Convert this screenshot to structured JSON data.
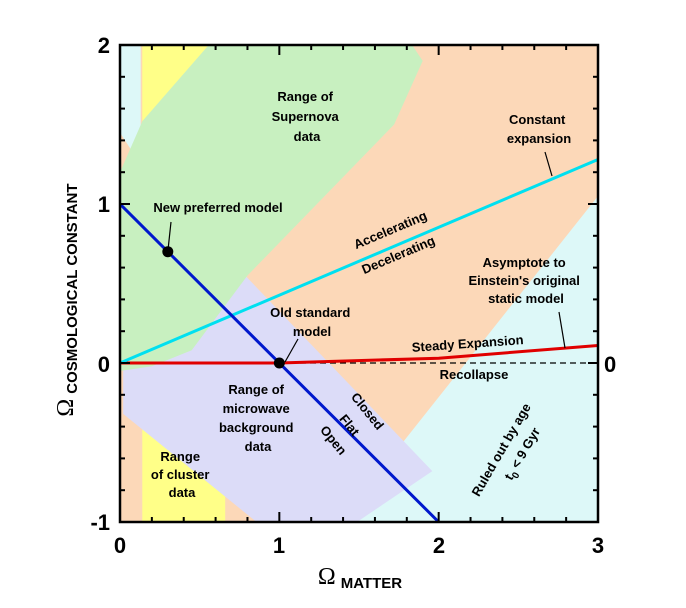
{
  "chart_data": {
    "type": "line",
    "xlabel": {
      "symbol": "Ω",
      "subscript": "MATTER"
    },
    "ylabel": {
      "symbol": "Ω",
      "subscript": "COSMOLOGICAL CONSTANT"
    },
    "xlim": [
      0,
      3
    ],
    "ylim": [
      -1,
      2
    ],
    "x_ticks": [
      "0",
      "1",
      "2",
      "3"
    ],
    "y_ticks": [
      "-1",
      "0",
      "1",
      "2"
    ],
    "right_marker": "0",
    "grid": false,
    "colors": {
      "supernova": "#c8f0c0",
      "cluster": "#ffff88",
      "microwave": "#dcdcf8",
      "age_excluded": "#ddf8f8",
      "background": "#fcd8b8",
      "flat_line": "#0018cc",
      "acceleration_line": "#00e0f0",
      "expansion_line": "#e00000"
    },
    "lines": [
      {
        "id": "flat",
        "x": [
          0,
          2
        ],
        "y": [
          1,
          -1
        ]
      },
      {
        "id": "acc-dec",
        "x": [
          0,
          3
        ],
        "y": [
          0,
          1.28
        ]
      },
      {
        "id": "steady",
        "x": [
          0,
          1,
          2,
          3
        ],
        "y": [
          0,
          0,
          0.03,
          0.11
        ]
      },
      {
        "id": "zero",
        "x": [
          0,
          3
        ],
        "y": [
          0,
          0
        ]
      }
    ],
    "points": [
      {
        "id": "new-model",
        "x": 0.3,
        "y": 0.7
      },
      {
        "id": "old-model",
        "x": 1.0,
        "y": 0.0
      }
    ],
    "annotations": {
      "supernova": [
        "Range of",
        "Supernova",
        "data"
      ],
      "constant": [
        "Constant",
        "expansion"
      ],
      "new_model": "New preferred model",
      "accelerating": "Accelerating",
      "decelerating": "Decelerating",
      "asymptote": [
        "Asymptote to",
        "Einstein's original",
        "static model"
      ],
      "old_model": [
        "Old standard",
        "model"
      ],
      "steady": "Steady Expansion",
      "recollapse": "Recollapse",
      "microwave": [
        "Range of",
        "microwave",
        "background",
        "data"
      ],
      "closed": "Closed",
      "flat": "Flat",
      "open": "Open",
      "cluster": [
        "Range",
        "of cluster",
        "data"
      ],
      "ruled_out": "Ruled out by age",
      "age_limit": {
        "symbol": "t",
        "subscript": "0",
        "rest": " < 9 Gyr"
      }
    }
  }
}
